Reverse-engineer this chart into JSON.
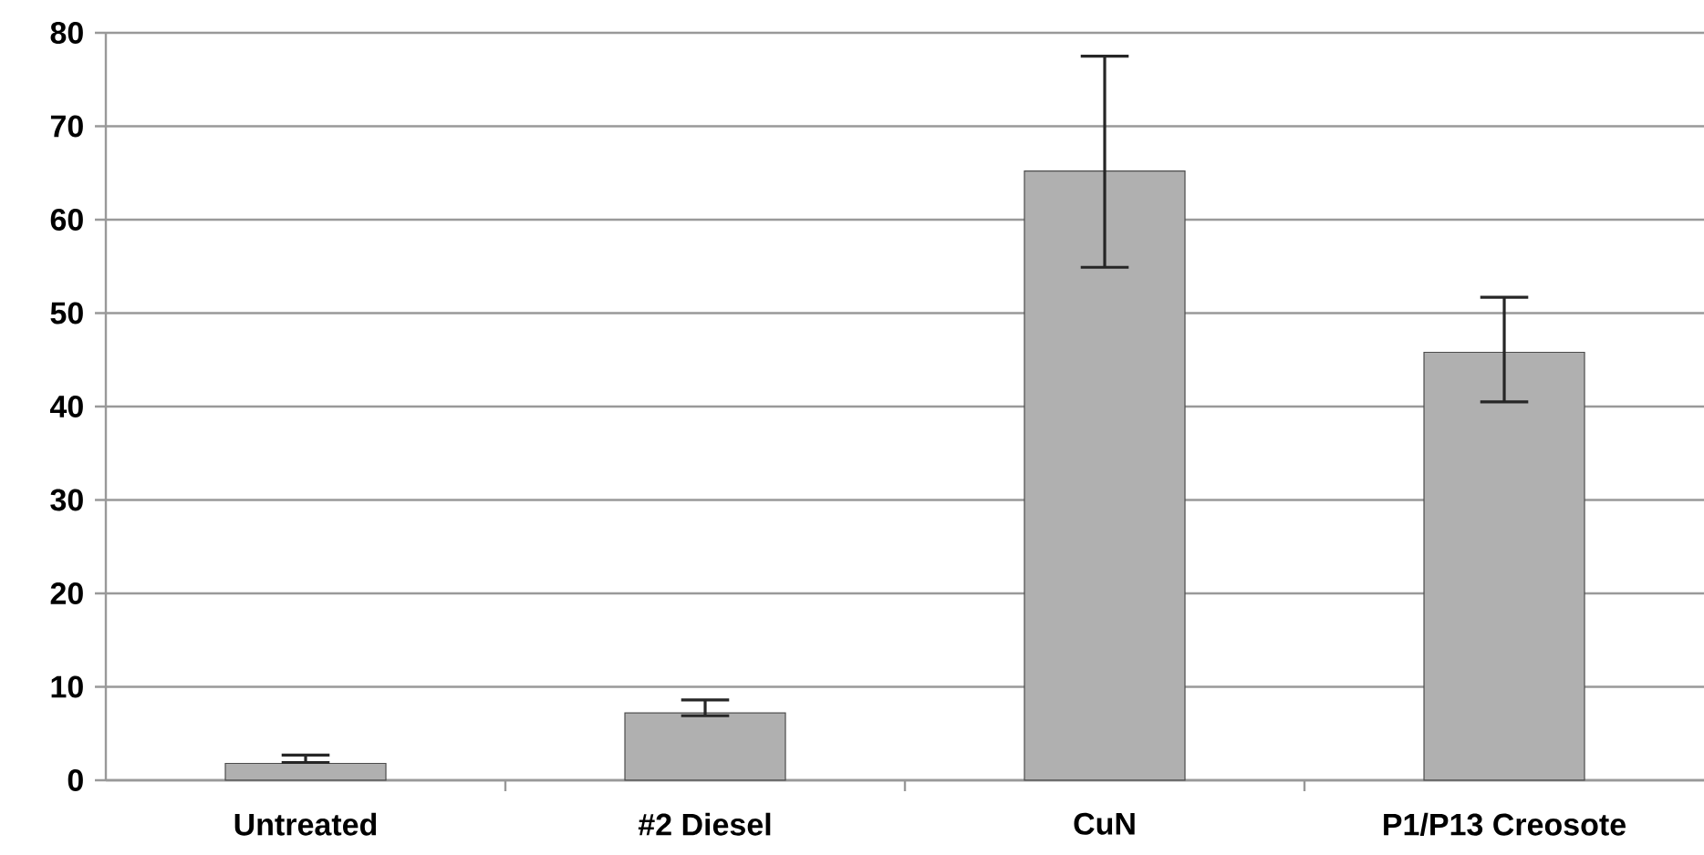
{
  "chart_data": {
    "type": "bar",
    "categories": [
      "Untreated",
      "#2 Diesel",
      "CuN",
      "P1/P13 Creosote"
    ],
    "values": [
      1.8,
      7.2,
      65.2,
      45.8
    ],
    "errors": [
      [
        1.9,
        2.7
      ],
      [
        6.9,
        8.6
      ],
      [
        54.9,
        77.5
      ],
      [
        40.5,
        51.7
      ]
    ],
    "color": "#b0b0b0",
    "ylim": [
      0,
      80
    ],
    "yticks": [
      0,
      10,
      20,
      30,
      40,
      50,
      60,
      70,
      80
    ],
    "grid": "y"
  }
}
